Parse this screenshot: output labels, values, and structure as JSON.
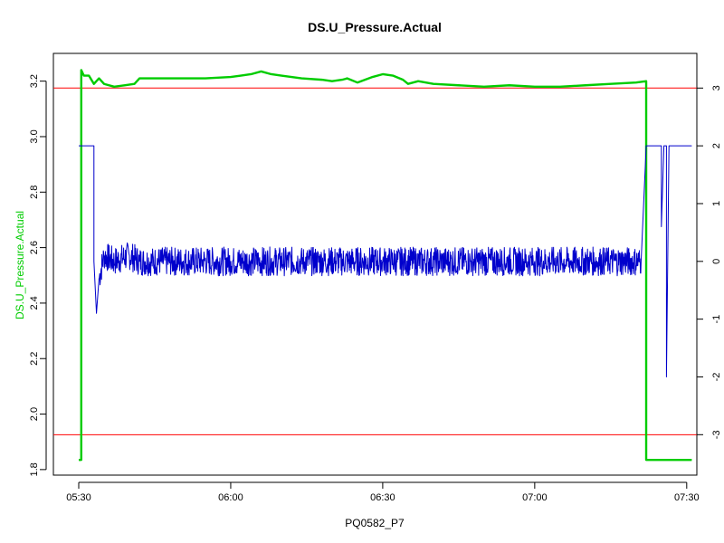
{
  "chart_data": {
    "type": "line",
    "title": "DS.U_Pressure.Actual",
    "xlabel": "PQ0582_P7",
    "ylabel": "DS.U_Pressure.Actual",
    "x_axis": {
      "unit": "minutes",
      "range": [
        "05:25",
        "07:32"
      ],
      "ticks": [
        {
          "value": "05:30",
          "label": "05:30"
        },
        {
          "value": "06:00",
          "label": "06:00"
        },
        {
          "value": "06:30",
          "label": "06:30"
        },
        {
          "value": "07:00",
          "label": "07:00"
        },
        {
          "value": "07:30",
          "label": "07:30"
        }
      ]
    },
    "y_left": {
      "range": [
        1.78,
        3.3
      ],
      "ticks": [
        1.8,
        2.0,
        2.2,
        2.4,
        2.6,
        2.8,
        3.0,
        3.2
      ],
      "tick_labels": [
        "1.8",
        "2.0",
        "2.2",
        "2.4",
        "2.6",
        "2.8",
        "3.0",
        "3.2"
      ]
    },
    "y_right": {
      "range": [
        -3.7,
        3.6
      ],
      "ticks": [
        -3,
        -2,
        -1,
        0,
        1,
        2,
        3
      ],
      "tick_labels": [
        "-3",
        "-2",
        "-1",
        "0",
        "1",
        "2",
        "3"
      ]
    },
    "reference_lines": [
      {
        "axis": "right",
        "value": 3.0,
        "color": "#ff0000"
      },
      {
        "axis": "right",
        "value": -3.0,
        "color": "#ff0000"
      }
    ],
    "series": [
      {
        "axis": "left",
        "color": "#00cc00",
        "points": [
          [
            "05:30",
            1.835
          ],
          [
            "05:30:30",
            1.835
          ],
          [
            "05:30:30",
            3.24
          ],
          [
            "05:31",
            3.22
          ],
          [
            "05:32",
            3.22
          ],
          [
            "05:33",
            3.19
          ],
          [
            "05:34",
            3.21
          ],
          [
            "05:35",
            3.19
          ],
          [
            "05:37",
            3.18
          ],
          [
            "05:39",
            3.185
          ],
          [
            "05:41",
            3.19
          ],
          [
            "05:42",
            3.21
          ],
          [
            "05:45",
            3.21
          ],
          [
            "05:50",
            3.21
          ],
          [
            "05:55",
            3.21
          ],
          [
            "06:00",
            3.215
          ],
          [
            "06:02",
            3.22
          ],
          [
            "06:04",
            3.225
          ],
          [
            "06:06",
            3.235
          ],
          [
            "06:08",
            3.225
          ],
          [
            "06:10",
            3.22
          ],
          [
            "06:14",
            3.21
          ],
          [
            "06:18",
            3.205
          ],
          [
            "06:20",
            3.2
          ],
          [
            "06:22",
            3.205
          ],
          [
            "06:23",
            3.21
          ],
          [
            "06:25",
            3.195
          ],
          [
            "06:28",
            3.215
          ],
          [
            "06:30",
            3.225
          ],
          [
            "06:32",
            3.22
          ],
          [
            "06:34",
            3.205
          ],
          [
            "06:35",
            3.19
          ],
          [
            "06:37",
            3.2
          ],
          [
            "06:40",
            3.19
          ],
          [
            "06:45",
            3.185
          ],
          [
            "06:50",
            3.18
          ],
          [
            "06:55",
            3.185
          ],
          [
            "07:00",
            3.18
          ],
          [
            "07:05",
            3.18
          ],
          [
            "07:10",
            3.185
          ],
          [
            "07:15",
            3.19
          ],
          [
            "07:20",
            3.195
          ],
          [
            "07:22",
            3.2
          ],
          [
            "07:22",
            1.835
          ],
          [
            "07:31",
            1.835
          ]
        ]
      },
      {
        "axis": "right",
        "color": "#0000cc",
        "points": [
          [
            "05:30",
            2.0
          ],
          [
            "05:33",
            2.0
          ],
          [
            "05:33",
            0.0
          ],
          [
            "05:33:30",
            -0.9
          ],
          [
            "05:34",
            -0.3
          ],
          [
            "05:35",
            0.1
          ],
          [
            "05:37",
            0.0
          ],
          [
            "05:40",
            0.1
          ],
          [
            "05:42",
            0.0
          ],
          [
            "05:45",
            0.0
          ],
          [
            "06:00",
            0.0
          ],
          [
            "06:30",
            0.0
          ],
          [
            "07:00",
            0.0
          ],
          [
            "07:21",
            0.0
          ],
          [
            "07:21:30",
            1.0
          ],
          [
            "07:22",
            2.0
          ],
          [
            "07:25",
            2.0
          ],
          [
            "07:25",
            0.6
          ],
          [
            "07:25:30",
            2.0
          ],
          [
            "07:26",
            2.0
          ],
          [
            "07:26",
            -2.0
          ],
          [
            "07:26:30",
            2.0
          ],
          [
            "07:31",
            2.0
          ]
        ],
        "noise_band": {
          "from": "05:34",
          "to": "07:21",
          "amplitude": 0.25
        }
      }
    ],
    "grid": false,
    "legend": "none"
  }
}
